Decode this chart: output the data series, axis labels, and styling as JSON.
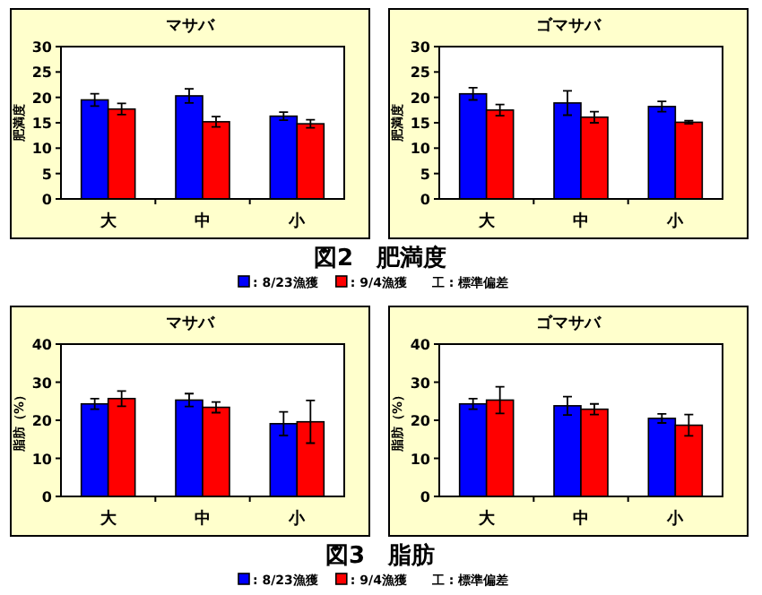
{
  "chart_data": [
    {
      "type": "bar",
      "title": "マサバ",
      "ylabel": "肥満度",
      "categories": [
        "大",
        "中",
        "小"
      ],
      "ylim": [
        0,
        30
      ],
      "yticks": [
        0,
        5,
        10,
        15,
        20,
        25,
        30
      ],
      "legend": "bottom",
      "annotations": [
        "図2　肥満度",
        "工 : 標準偏差"
      ],
      "series": [
        {
          "name": ": 8/23漁獲",
          "color": "#0000ff",
          "values": [
            19.5,
            20.3,
            16.3
          ],
          "errors": [
            1.2,
            1.4,
            0.8
          ]
        },
        {
          "name": ": 9/4漁獲",
          "color": "#ff0000",
          "values": [
            17.7,
            15.2,
            14.8
          ],
          "errors": [
            1.1,
            1.0,
            0.8
          ]
        }
      ]
    },
    {
      "type": "bar",
      "title": "ゴマサバ",
      "ylabel": "肥満度",
      "categories": [
        "大",
        "中",
        "小"
      ],
      "ylim": [
        0,
        30
      ],
      "yticks": [
        0,
        5,
        10,
        15,
        20,
        25,
        30
      ],
      "series": [
        {
          "color": "#0000ff",
          "values": [
            20.7,
            18.9,
            18.2
          ],
          "errors": [
            1.2,
            2.4,
            1.0
          ]
        },
        {
          "color": "#ff0000",
          "values": [
            17.5,
            16.1,
            15.1
          ],
          "errors": [
            1.1,
            1.1,
            0.3
          ]
        }
      ]
    },
    {
      "type": "bar",
      "title": "マサバ",
      "ylabel": "脂肪（%）",
      "categories": [
        "大",
        "中",
        "小"
      ],
      "ylim": [
        0,
        40
      ],
      "yticks": [
        0,
        10,
        20,
        30,
        40
      ],
      "legend": "bottom",
      "annotations": [
        "図3　脂肪",
        "工 : 標準偏差"
      ],
      "series": [
        {
          "name": ": 8/23漁獲",
          "color": "#0000ff",
          "values": [
            24.3,
            25.3,
            19.1
          ],
          "errors": [
            1.4,
            1.7,
            3.1
          ]
        },
        {
          "name": ": 9/4漁獲",
          "color": "#ff0000",
          "values": [
            25.7,
            23.4,
            19.6
          ],
          "errors": [
            2.0,
            1.4,
            5.6
          ]
        }
      ]
    },
    {
      "type": "bar",
      "title": "ゴマサバ",
      "ylabel": "脂肪（%）",
      "categories": [
        "大",
        "中",
        "小"
      ],
      "ylim": [
        0,
        40
      ],
      "yticks": [
        0,
        10,
        20,
        30,
        40
      ],
      "series": [
        {
          "color": "#0000ff",
          "values": [
            24.3,
            23.8,
            20.5
          ],
          "errors": [
            1.4,
            2.4,
            1.2
          ]
        },
        {
          "color": "#ff0000",
          "values": [
            25.3,
            22.9,
            18.7
          ],
          "errors": [
            3.5,
            1.4,
            2.8
          ]
        }
      ]
    }
  ]
}
